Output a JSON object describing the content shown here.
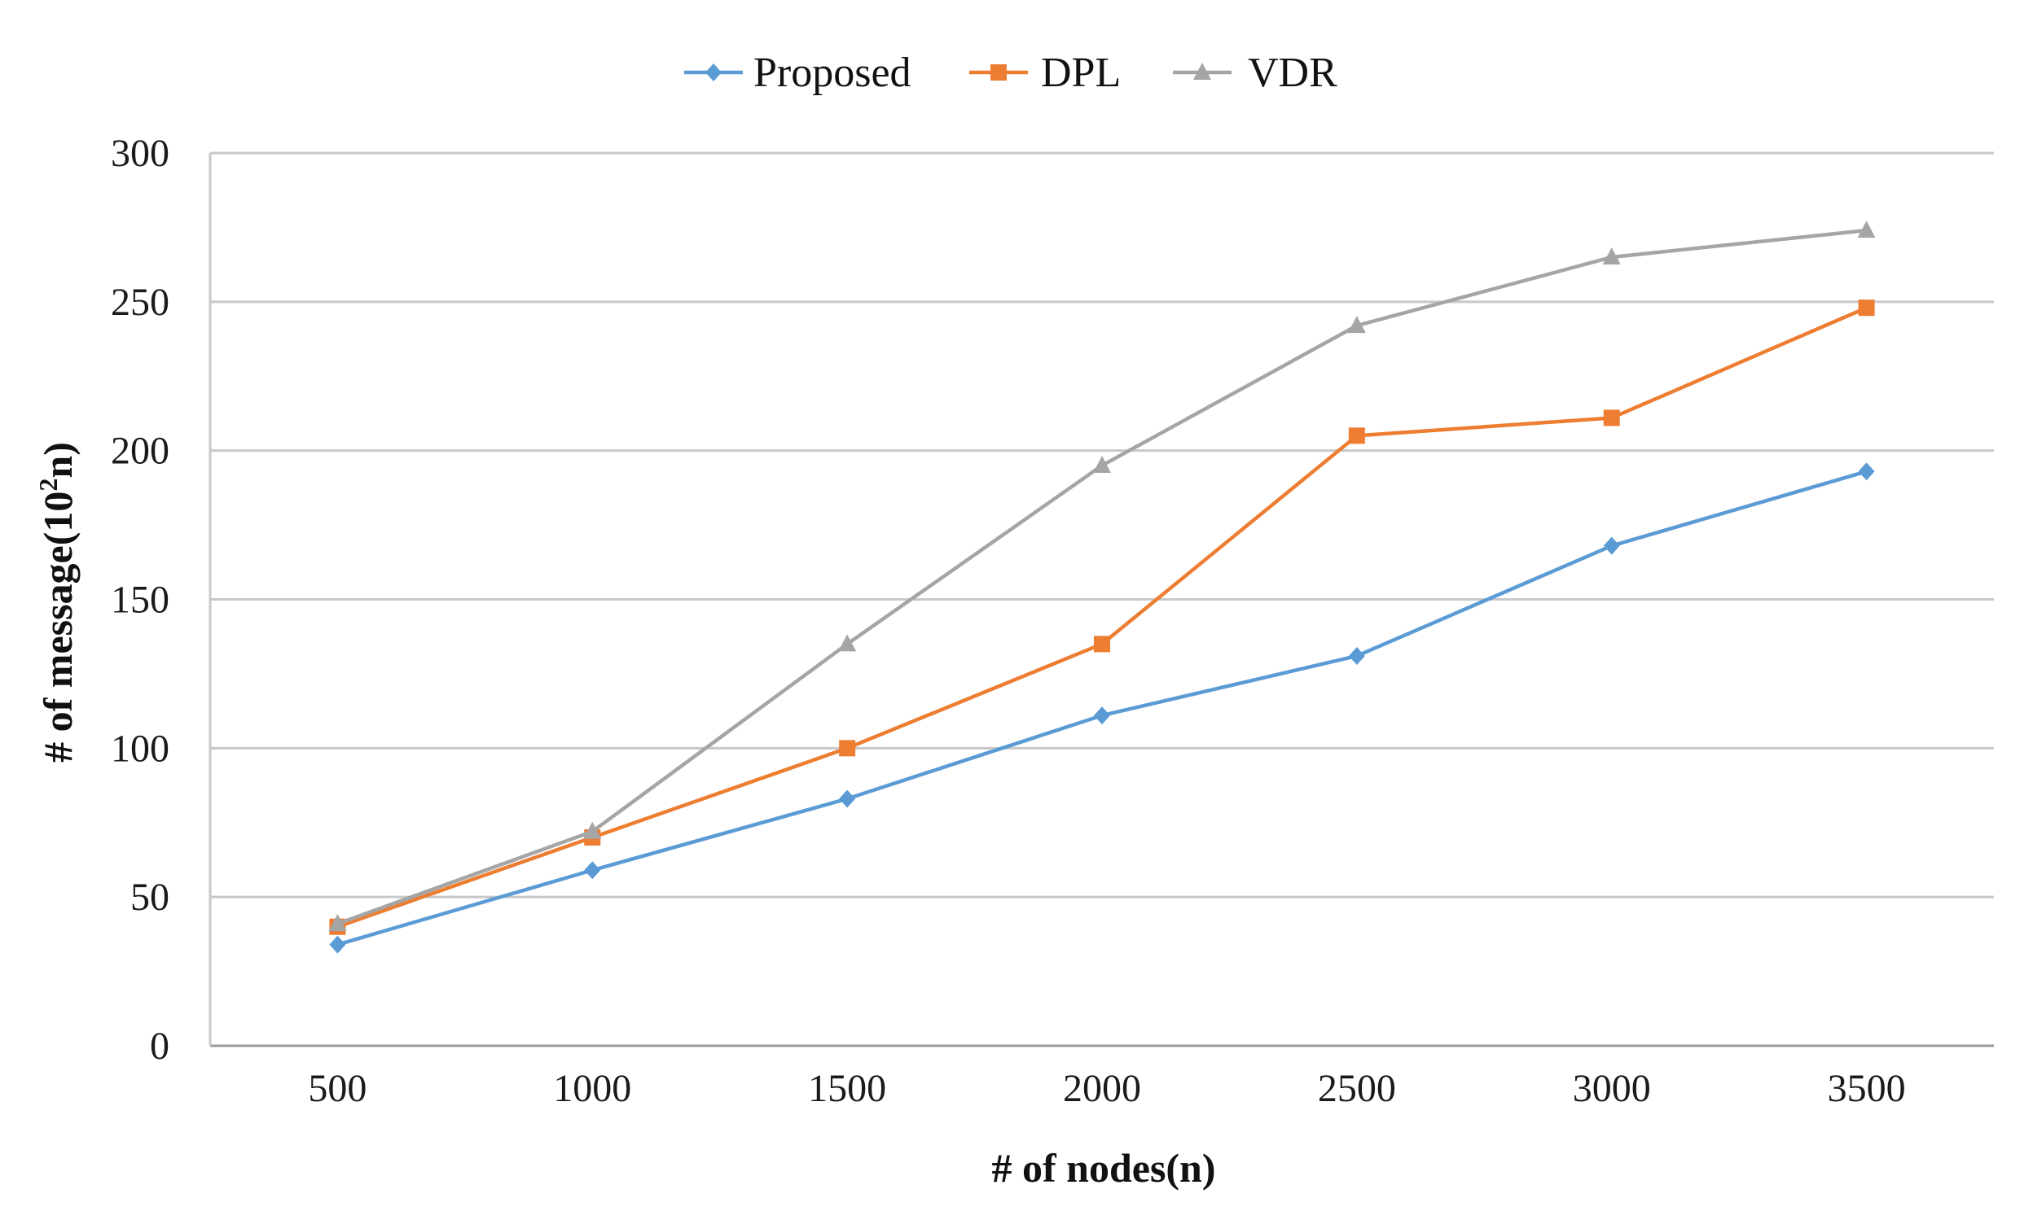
{
  "chart_data": {
    "type": "line",
    "title": "",
    "xlabel": "# of nodes(n)",
    "ylabel_prefix": "# of message(10",
    "ylabel_sup": "2",
    "ylabel_suffix": "n)",
    "categories": [
      "500",
      "1000",
      "1500",
      "2000",
      "2500",
      "3000",
      "3500"
    ],
    "ylim": [
      0,
      300
    ],
    "yticks": [
      0,
      50,
      100,
      150,
      200,
      250,
      300
    ],
    "grid": true,
    "legend_position": "top-center",
    "series": [
      {
        "name": "Proposed",
        "color": "#5B9BD5",
        "marker": "diamond",
        "values": [
          34,
          59,
          83,
          111,
          131,
          168,
          193
        ]
      },
      {
        "name": "DPL",
        "color": "#ED7D31",
        "marker": "square",
        "values": [
          40,
          70,
          100,
          135,
          205,
          211,
          248
        ]
      },
      {
        "name": "VDR",
        "color": "#A5A5A5",
        "marker": "triangle",
        "values": [
          41,
          72,
          135,
          195,
          242,
          265,
          274
        ]
      }
    ]
  }
}
